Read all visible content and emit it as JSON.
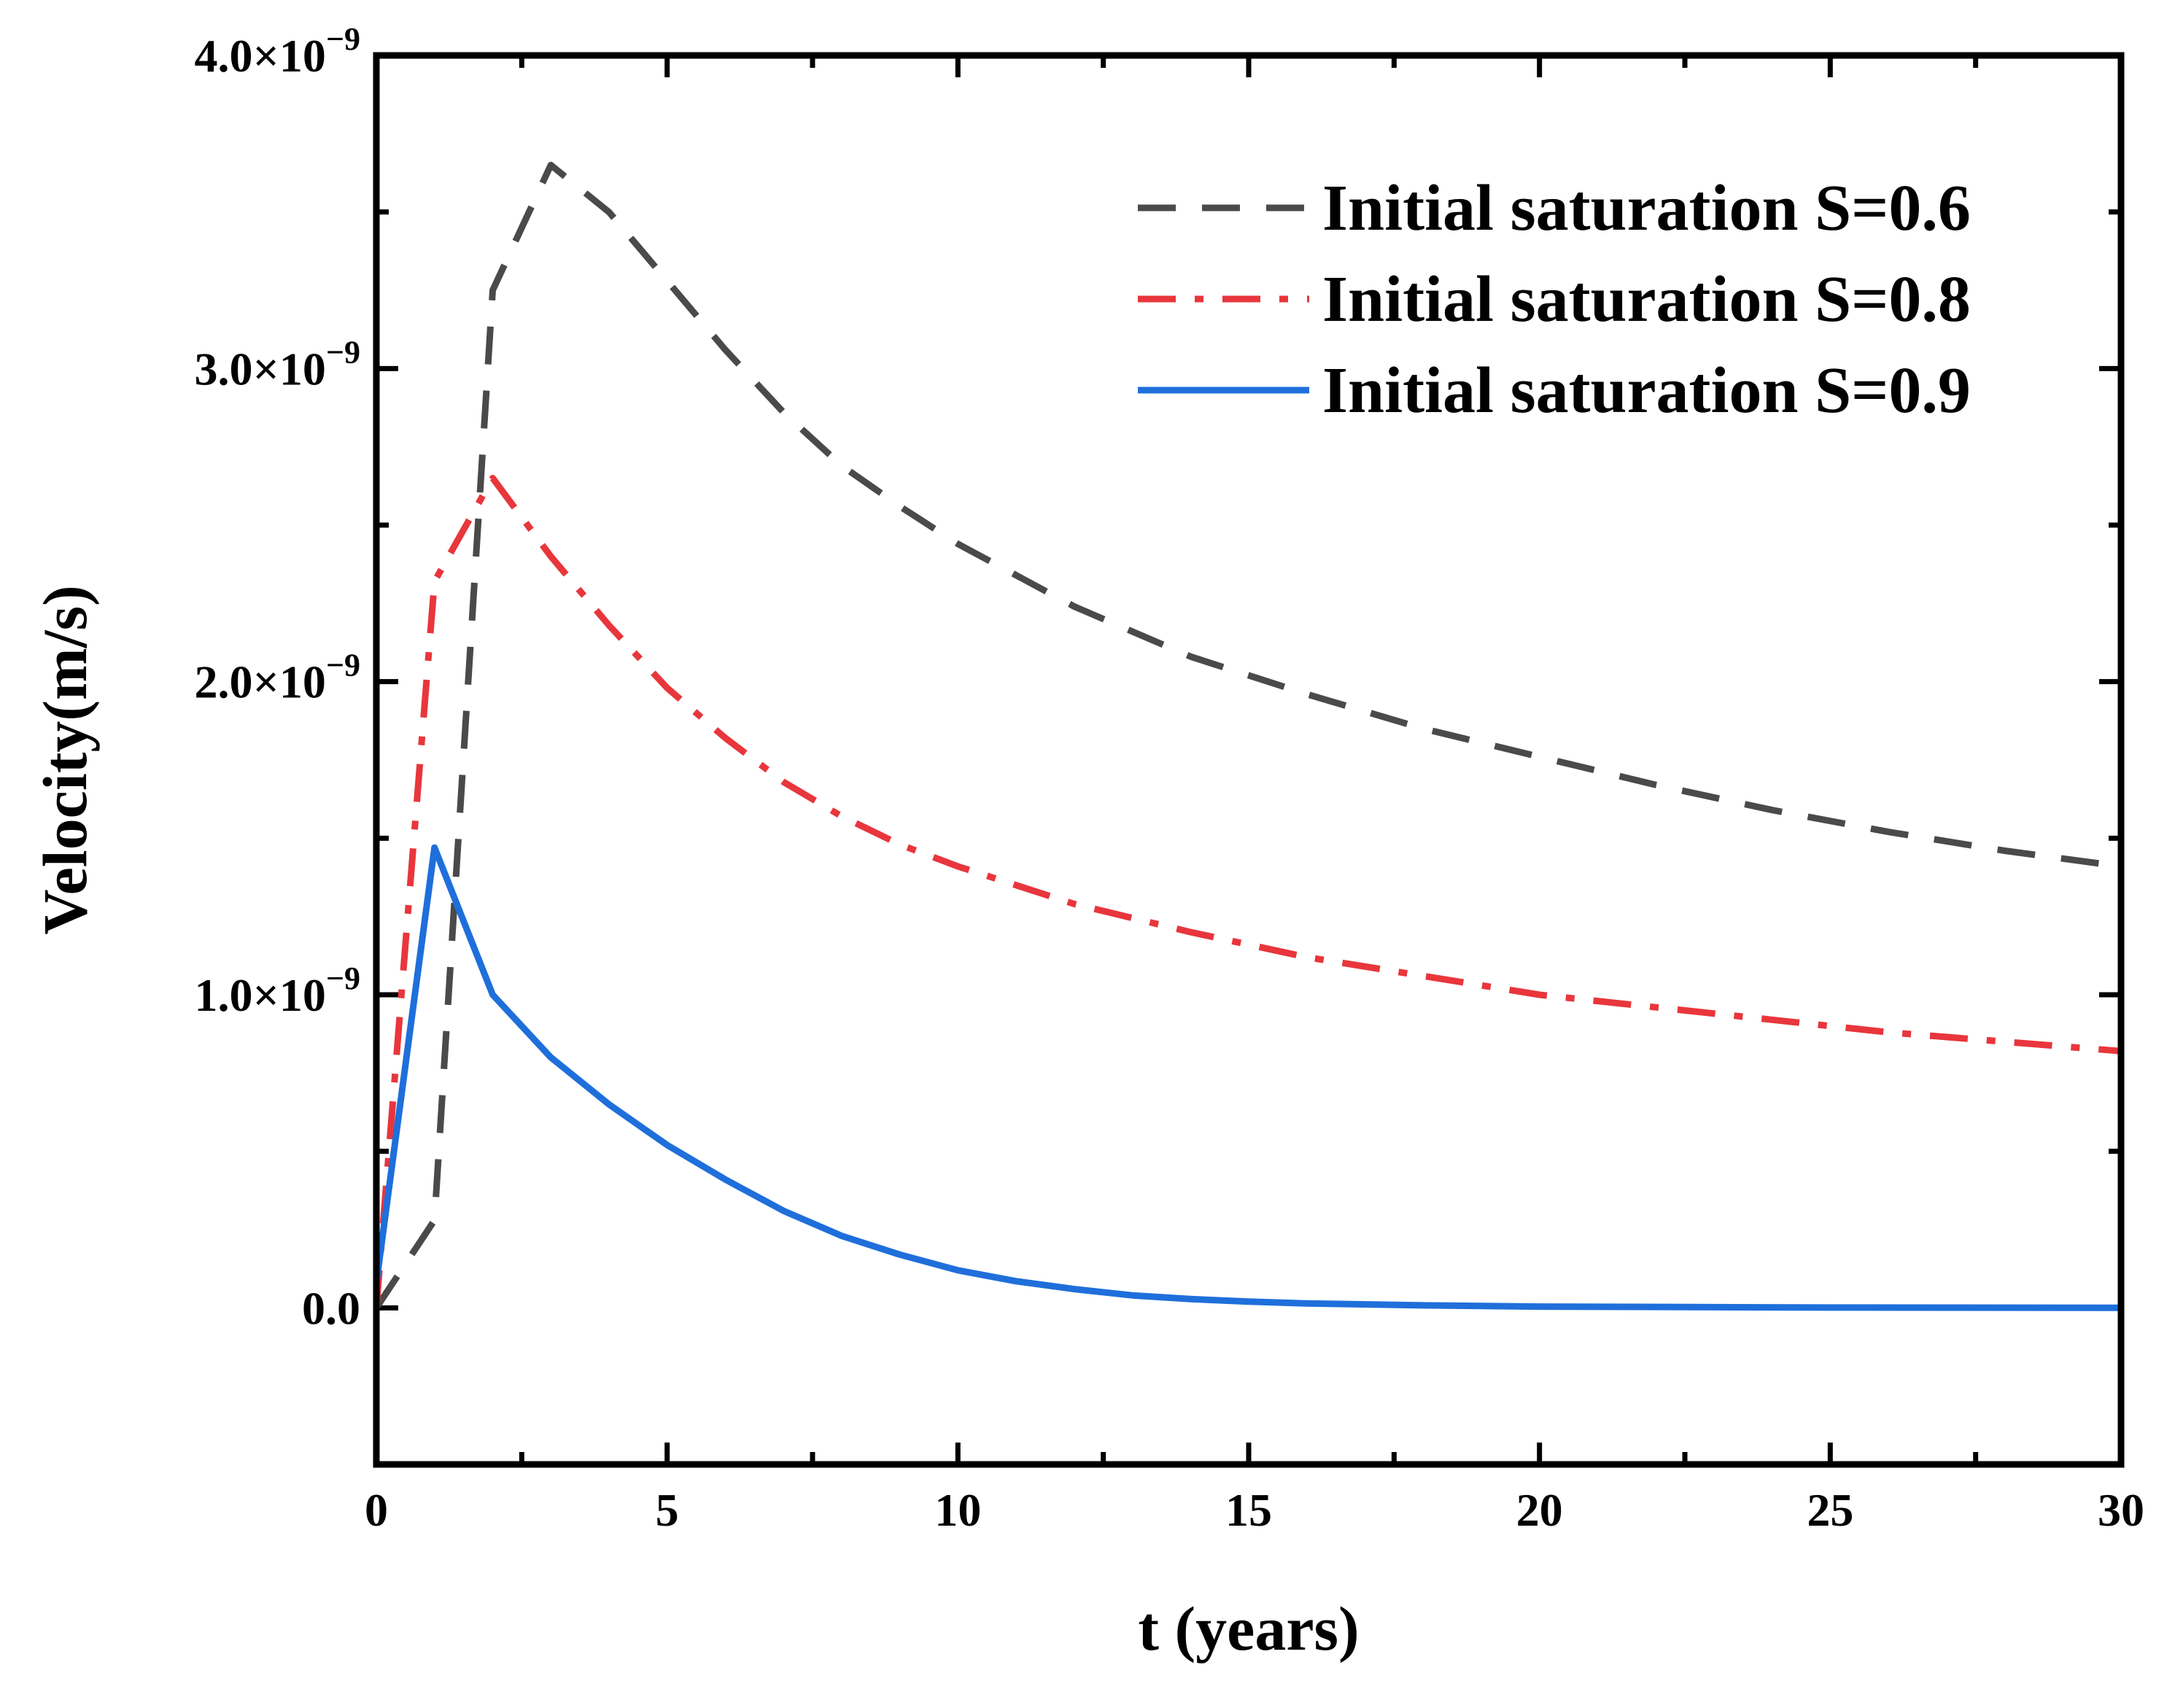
{
  "chart_data": {
    "type": "line",
    "title": "",
    "xlabel": "t (years)",
    "ylabel": "Velocity(m/s)",
    "xlim": [
      0,
      30
    ],
    "ylim": [
      -5e-10,
      4e-09
    ],
    "x_ticks": [
      {
        "value": 0,
        "label": "0"
      },
      {
        "value": 5,
        "label": "5"
      },
      {
        "value": 10,
        "label": "10"
      },
      {
        "value": 15,
        "label": "15"
      },
      {
        "value": 20,
        "label": "20"
      },
      {
        "value": 25,
        "label": "25"
      },
      {
        "value": 30,
        "label": "30"
      }
    ],
    "y_ticks": [
      {
        "value": 0,
        "label": "0.0",
        "exp": ""
      },
      {
        "value": 1e-09,
        "label": "1.0×10",
        "exp": "−9"
      },
      {
        "value": 2e-09,
        "label": "2.0×10",
        "exp": "−9"
      },
      {
        "value": 3e-09,
        "label": "3.0×10",
        "exp": "−9"
      },
      {
        "value": 4e-09,
        "label": "4.0×10",
        "exp": "−9"
      }
    ],
    "grid": false,
    "legend_position": "top-right",
    "series": [
      {
        "name": "Initial saturation S=0.6",
        "color": "#4a4a4a",
        "style": "dashed",
        "x": [
          0,
          1,
          2,
          3,
          4,
          5,
          6,
          7,
          8,
          9,
          10,
          12,
          14,
          16,
          18,
          20,
          22,
          24,
          26,
          28,
          30
        ],
        "y": [
          0,
          2.8e-10,
          3.25e-09,
          3.65e-09,
          3.5e-09,
          3.28e-09,
          3.06e-09,
          2.86e-09,
          2.69e-09,
          2.56e-09,
          2.44e-09,
          2.24e-09,
          2.08e-09,
          1.96e-09,
          1.85e-09,
          1.76e-09,
          1.67e-09,
          1.59e-09,
          1.52e-09,
          1.46e-09,
          1.41e-09
        ]
      },
      {
        "name": "Initial saturation S=0.8",
        "color": "#e8363c",
        "style": "dashdot",
        "x": [
          0,
          1,
          2,
          3,
          4,
          5,
          6,
          7,
          8,
          9,
          10,
          12,
          14,
          16,
          18,
          20,
          22,
          24,
          26,
          28,
          30
        ],
        "y": [
          0,
          2.32e-09,
          2.65e-09,
          2.4e-09,
          2.18e-09,
          1.98e-09,
          1.82e-09,
          1.68e-09,
          1.57e-09,
          1.48e-09,
          1.41e-09,
          1.29e-09,
          1.2e-09,
          1.12e-09,
          1.06e-09,
          1e-09,
          9.6e-10,
          9.2e-10,
          8.8e-10,
          8.5e-10,
          8.2e-10
        ]
      },
      {
        "name": "Initial saturation S=0.9",
        "color": "#1f6fdb",
        "style": "solid",
        "x": [
          0,
          1,
          2,
          3,
          4,
          5,
          6,
          7,
          8,
          9,
          10,
          11,
          12,
          13,
          14,
          15,
          16,
          18,
          20,
          25,
          30
        ],
        "y": [
          8e-11,
          1.47e-09,
          1e-09,
          8e-10,
          6.5e-10,
          5.2e-10,
          4.1e-10,
          3.1e-10,
          2.3e-10,
          1.7e-10,
          1.2e-10,
          8.5e-11,
          6e-11,
          4e-11,
          2.8e-11,
          2e-11,
          1.4e-11,
          8e-12,
          4e-12,
          1e-12,
          0.0
        ]
      }
    ]
  }
}
